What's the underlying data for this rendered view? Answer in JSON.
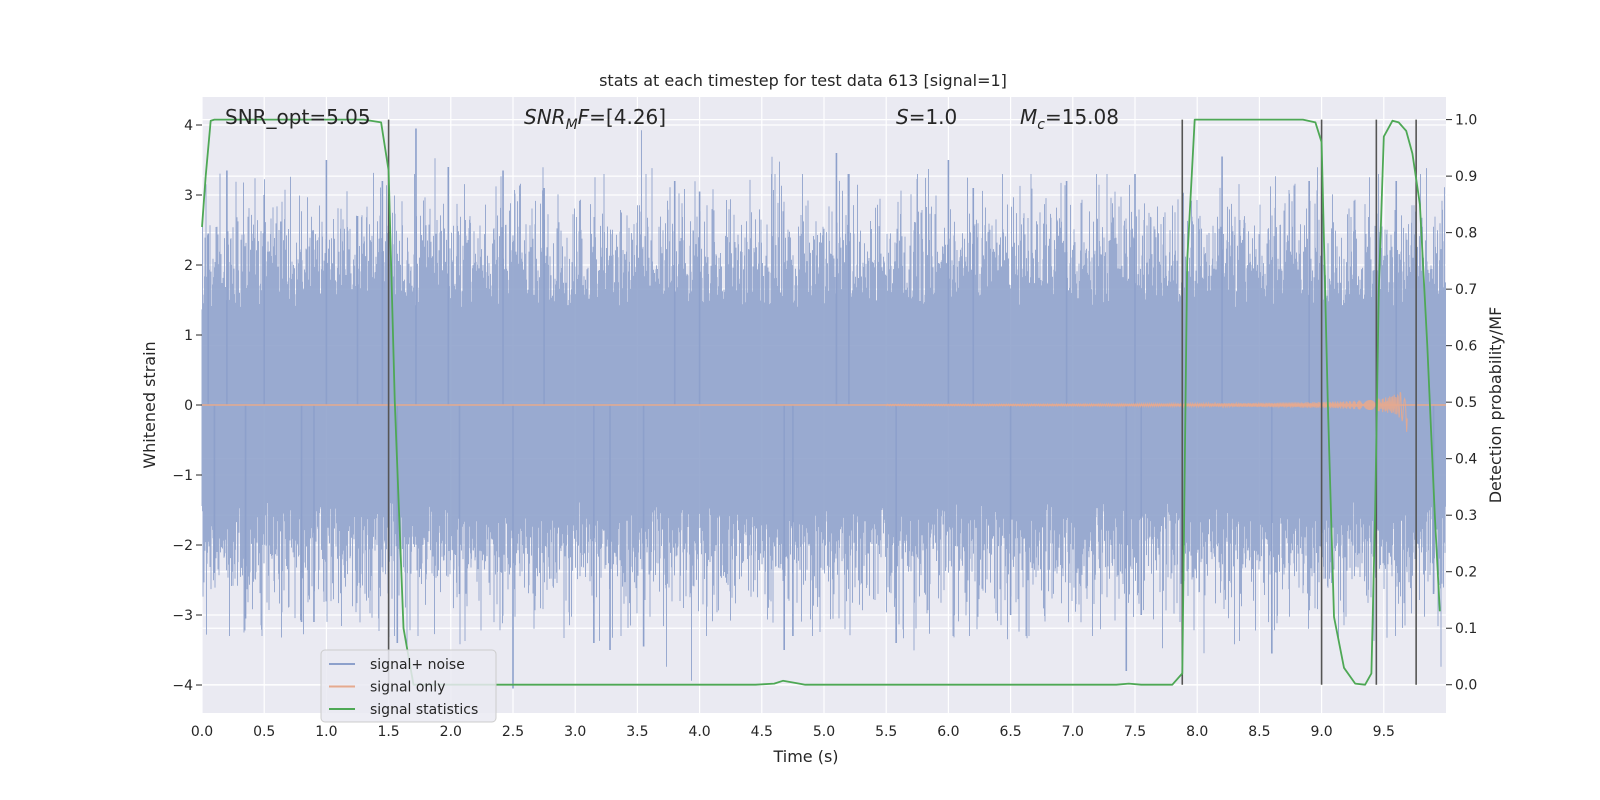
{
  "chart_data": {
    "type": "line",
    "title": "stats at each timestep for test data 613 [signal=1]",
    "xlabel": "Time (s)",
    "ylabel": "Whitened strain",
    "ylabel_right": "Detection probability/MF",
    "xlim": [
      0.0,
      10.0
    ],
    "ylim": [
      -4.4,
      4.4
    ],
    "ylim_right": [
      -0.05,
      1.04
    ],
    "x_ticks": [
      0.0,
      0.5,
      1.0,
      1.5,
      2.0,
      2.5,
      3.0,
      3.5,
      4.0,
      4.5,
      5.0,
      5.5,
      6.0,
      6.5,
      7.0,
      7.5,
      8.0,
      8.5,
      9.0,
      9.5
    ],
    "x_tick_labels": [
      "0.0",
      "0.5",
      "1.0",
      "1.5",
      "2.0",
      "2.5",
      "3.0",
      "3.5",
      "4.0",
      "4.5",
      "5.0",
      "5.5",
      "6.0",
      "6.5",
      "7.0",
      "7.5",
      "8.0",
      "8.5",
      "9.0",
      "9.5"
    ],
    "y_ticks": [
      -4,
      -3,
      -2,
      -1,
      0,
      1,
      2,
      3,
      4
    ],
    "y_tick_labels": [
      "−4",
      "−3",
      "−2",
      "−1",
      "0",
      "1",
      "2",
      "3",
      "4"
    ],
    "y2_ticks": [
      0.0,
      0.1,
      0.2,
      0.3,
      0.4,
      0.5,
      0.6,
      0.7,
      0.8,
      0.9,
      1.0
    ],
    "y2_tick_labels": [
      "0.0",
      "0.1",
      "0.2",
      "0.3",
      "0.4",
      "0.5",
      "0.6",
      "0.7",
      "0.8",
      "0.9",
      "1.0"
    ],
    "grid": true,
    "legend_position": "lower-left",
    "annotations": {
      "snr_opt": "SNR_opt=5.05",
      "snr_mf_sym": "SNR",
      "snr_mf_sub": "M",
      "snr_mf_mid": "F",
      "snr_mf_val": "=[4.26]",
      "s_sym": "S",
      "s_val": "=1.0",
      "mc_sym": "M",
      "mc_sub": "c",
      "mc_val": "=15.08"
    },
    "vertical_lines_x": [
      1.5,
      7.88,
      9.0,
      9.44,
      9.76
    ],
    "series": [
      {
        "name": "signal+ noise",
        "color": "#8da0cb",
        "axis": "left",
        "style": "noise band",
        "envelope_typical": 1.6,
        "envelope_peak": [
          [
            0.05,
            2.45
          ],
          [
            0.1,
            -2.4
          ],
          [
            0.2,
            3.35
          ],
          [
            0.35,
            -3.05
          ],
          [
            0.5,
            3.0
          ],
          [
            0.8,
            -3.1
          ],
          [
            0.9,
            -3.1
          ],
          [
            1.0,
            3.5
          ],
          [
            1.25,
            2.7
          ],
          [
            1.45,
            3.2
          ],
          [
            1.57,
            -3.4
          ],
          [
            1.72,
            3.95
          ],
          [
            1.98,
            3.4
          ],
          [
            2.07,
            -2.7
          ],
          [
            2.42,
            3.35
          ],
          [
            2.5,
            -4.05
          ],
          [
            2.75,
            3.1
          ],
          [
            3.15,
            -3.4
          ],
          [
            3.28,
            -3.5
          ],
          [
            3.55,
            -3.45
          ],
          [
            3.8,
            3.2
          ],
          [
            4.0,
            3.05
          ],
          [
            4.68,
            -3.5
          ],
          [
            4.75,
            -3.3
          ],
          [
            5.1,
            3.6
          ],
          [
            5.2,
            3.3
          ],
          [
            5.58,
            -3.4
          ],
          [
            6.0,
            3.5
          ],
          [
            6.2,
            3.1
          ],
          [
            6.5,
            -3.0
          ],
          [
            6.95,
            3.2
          ],
          [
            7.43,
            -3.8
          ],
          [
            7.5,
            3.3
          ],
          [
            7.55,
            -3.0
          ],
          [
            8.2,
            3.55
          ],
          [
            8.6,
            -3.55
          ],
          [
            8.9,
            3.2
          ],
          [
            9.6,
            3.2
          ],
          [
            9.9,
            -2.7
          ]
        ]
      },
      {
        "name": "signal only",
        "color": "#e5a98e",
        "axis": "left",
        "style": "chirp",
        "start_x": 5.5,
        "end_x": 9.69,
        "peak_amplitude": 0.97
      },
      {
        "name": "signal statistics",
        "color": "#4ea855",
        "axis": "right",
        "x": [
          0.0,
          0.03,
          0.07,
          0.1,
          0.2,
          1.3,
          1.44,
          1.5,
          1.55,
          1.62,
          1.7,
          4.45,
          4.6,
          4.67,
          4.75,
          4.85,
          7.35,
          7.45,
          7.55,
          7.8,
          7.88,
          7.92,
          7.98,
          8.85,
          8.95,
          9.0,
          9.05,
          9.1,
          9.18,
          9.27,
          9.35,
          9.4,
          9.43,
          9.46,
          9.5,
          9.57,
          9.62,
          9.68,
          9.73,
          9.79,
          9.85,
          9.91,
          9.95
        ],
        "y": [
          0.81,
          0.9,
          0.998,
          1.0,
          1.0,
          1.0,
          0.995,
          0.91,
          0.5,
          0.1,
          0.0,
          0.0,
          0.002,
          0.007,
          0.004,
          0.0,
          0.0,
          0.002,
          0.0,
          0.0,
          0.02,
          0.75,
          1.0,
          1.0,
          0.995,
          0.96,
          0.5,
          0.12,
          0.03,
          0.002,
          0.0,
          0.02,
          0.3,
          0.7,
          0.97,
          0.998,
          0.995,
          0.98,
          0.94,
          0.85,
          0.6,
          0.3,
          0.13
        ]
      }
    ]
  }
}
